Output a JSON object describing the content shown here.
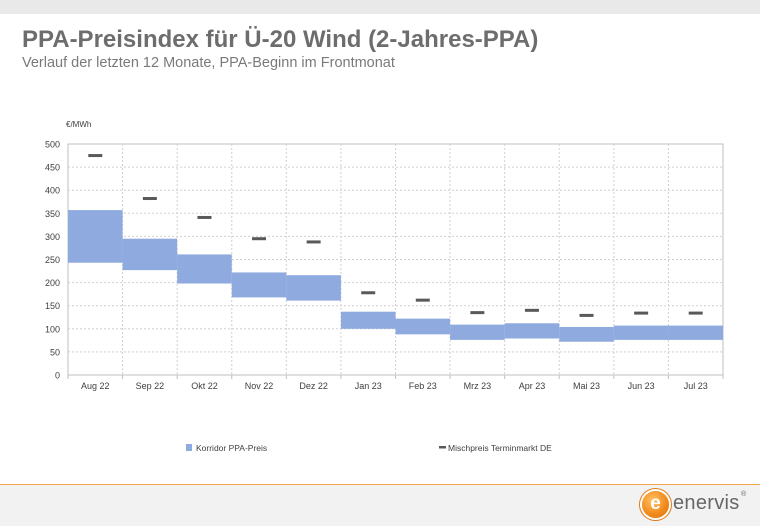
{
  "header": {
    "title": "PPA-Preisindex für Ü-20 Wind (2-Jahres-PPA)",
    "subtitle": "Verlauf der letzten 12 Monate, PPA-Beginn im Frontmonat"
  },
  "chart_data": {
    "type": "bar",
    "unit_label": "€/MWh",
    "ylim": [
      0,
      500
    ],
    "yticks": [
      0,
      50,
      100,
      150,
      200,
      250,
      300,
      350,
      400,
      450,
      500
    ],
    "grid": true,
    "legend_position": "bottom",
    "categories": [
      "Aug 22",
      "Sep 22",
      "Okt 22",
      "Nov 22",
      "Dez 22",
      "Jan 23",
      "Feb 23",
      "Mrz 23",
      "Apr 23",
      "Mai 23",
      "Jun 23",
      "Jul 23"
    ],
    "series": [
      {
        "name": "Korridor PPA-Preis",
        "kind": "range",
        "color": "#8eaadf",
        "low": [
          243,
          227,
          198,
          168,
          161,
          100,
          88,
          76,
          79,
          72,
          76,
          76
        ],
        "high": [
          357,
          295,
          261,
          222,
          216,
          137,
          122,
          109,
          112,
          104,
          107,
          107
        ]
      },
      {
        "name": "Mischpreis Terminmarkt DE",
        "kind": "marker",
        "color": "#595959",
        "values": [
          475,
          382,
          341,
          295,
          288,
          178,
          162,
          135,
          140,
          129,
          134,
          134
        ]
      }
    ]
  },
  "footer": {
    "logo_mark": "e",
    "logo_text": "enervis",
    "logo_reg": "®"
  },
  "colors": {
    "title": "#6d6d6d",
    "accent": "#f28c1e",
    "band": "#8eaadf",
    "marker": "#595959"
  }
}
